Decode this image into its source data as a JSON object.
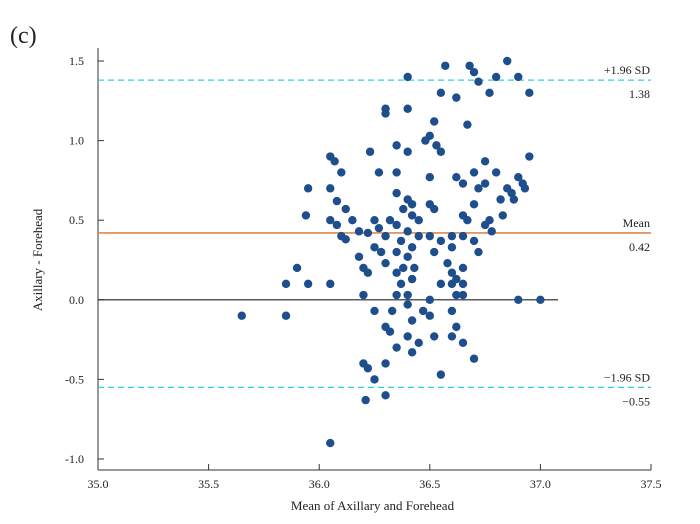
{
  "panel_label": "(c)",
  "chart_data": {
    "type": "scatter",
    "title": "",
    "xlabel": "Mean of Axillary and Forehead",
    "ylabel": "Axillary - Forehead",
    "xlim": [
      35.0,
      37.5
    ],
    "ylim": [
      -1.0,
      1.5
    ],
    "x_ticks": [
      35.0,
      35.5,
      36.0,
      36.5,
      37.0,
      37.5
    ],
    "x_tick_labels": [
      "35.0",
      "35.5",
      "36.0",
      "36.5",
      "37.0",
      "37.5"
    ],
    "y_ticks": [
      -1.0,
      -0.5,
      0.0,
      0.5,
      1.0,
      1.5
    ],
    "y_tick_labels": [
      "-1.0",
      "-0.5",
      "0.0",
      "0.5",
      "1.0",
      "1.5"
    ],
    "grid": false,
    "colors": {
      "points": "#1f4e8c",
      "mean_line": "#d98a4f",
      "limit_lines": "#2fd0e6",
      "zero_line": "#222222",
      "axes": "#333333"
    },
    "zero_line": {
      "y": 0.0,
      "x_range": [
        35.0,
        37.08
      ]
    },
    "reference_lines": [
      {
        "name": "upper_loa",
        "y": 1.38,
        "label": "+1.96 SD",
        "value_label": "1.38",
        "style": "dashed"
      },
      {
        "name": "mean",
        "y": 0.42,
        "label": "Mean",
        "value_label": "0.42",
        "style": "solid"
      },
      {
        "name": "lower_loa",
        "y": -0.55,
        "label": "−1.96 SD",
        "value_label": "−0.55",
        "style": "dashed"
      }
    ],
    "points": [
      {
        "x": 35.65,
        "y": -0.1
      },
      {
        "x": 35.85,
        "y": -0.1
      },
      {
        "x": 35.85,
        "y": 0.1
      },
      {
        "x": 35.9,
        "y": 0.2
      },
      {
        "x": 35.95,
        "y": 0.1
      },
      {
        "x": 35.94,
        "y": 0.53
      },
      {
        "x": 35.95,
        "y": 0.7
      },
      {
        "x": 36.05,
        "y": 0.9
      },
      {
        "x": 36.07,
        "y": 0.87
      },
      {
        "x": 36.1,
        "y": 0.8
      },
      {
        "x": 36.05,
        "y": 0.7
      },
      {
        "x": 36.08,
        "y": 0.62
      },
      {
        "x": 36.12,
        "y": 0.57
      },
      {
        "x": 36.05,
        "y": 0.5
      },
      {
        "x": 36.08,
        "y": 0.47
      },
      {
        "x": 36.1,
        "y": 0.4
      },
      {
        "x": 36.12,
        "y": 0.38
      },
      {
        "x": 36.05,
        "y": 0.1
      },
      {
        "x": 36.05,
        "y": -0.9
      },
      {
        "x": 36.18,
        "y": 0.43
      },
      {
        "x": 36.15,
        "y": 0.5
      },
      {
        "x": 36.22,
        "y": 0.42
      },
      {
        "x": 36.25,
        "y": 0.5
      },
      {
        "x": 36.27,
        "y": 0.45
      },
      {
        "x": 36.3,
        "y": 0.4
      },
      {
        "x": 36.25,
        "y": 0.33
      },
      {
        "x": 36.28,
        "y": 0.3
      },
      {
        "x": 36.3,
        "y": 0.23
      },
      {
        "x": 36.18,
        "y": 0.27
      },
      {
        "x": 36.2,
        "y": 0.2
      },
      {
        "x": 36.22,
        "y": 0.17
      },
      {
        "x": 36.2,
        "y": 0.03
      },
      {
        "x": 36.25,
        "y": -0.07
      },
      {
        "x": 36.2,
        "y": -0.4
      },
      {
        "x": 36.22,
        "y": -0.43
      },
      {
        "x": 36.21,
        "y": -0.63
      },
      {
        "x": 36.25,
        "y": -0.5
      },
      {
        "x": 36.3,
        "y": -0.6
      },
      {
        "x": 36.3,
        "y": -0.4
      },
      {
        "x": 36.3,
        "y": -0.17
      },
      {
        "x": 36.32,
        "y": -0.2
      },
      {
        "x": 36.35,
        "y": -0.3
      },
      {
        "x": 36.33,
        "y": -0.07
      },
      {
        "x": 36.35,
        "y": 0.03
      },
      {
        "x": 36.37,
        "y": 0.1
      },
      {
        "x": 36.35,
        "y": 0.17
      },
      {
        "x": 36.38,
        "y": 0.2
      },
      {
        "x": 36.35,
        "y": 0.3
      },
      {
        "x": 36.37,
        "y": 0.37
      },
      {
        "x": 36.4,
        "y": 0.43
      },
      {
        "x": 36.35,
        "y": 0.47
      },
      {
        "x": 36.32,
        "y": 0.5
      },
      {
        "x": 36.38,
        "y": 0.57
      },
      {
        "x": 36.4,
        "y": 0.63
      },
      {
        "x": 36.42,
        "y": 0.6
      },
      {
        "x": 36.35,
        "y": 0.67
      },
      {
        "x": 36.35,
        "y": 0.8
      },
      {
        "x": 36.4,
        "y": 0.93
      },
      {
        "x": 36.35,
        "y": 0.97
      },
      {
        "x": 36.3,
        "y": 1.17
      },
      {
        "x": 36.3,
        "y": 1.2
      },
      {
        "x": 36.4,
        "y": 1.2
      },
      {
        "x": 36.4,
        "y": 1.4
      },
      {
        "x": 36.23,
        "y": 0.93
      },
      {
        "x": 36.27,
        "y": 0.8
      },
      {
        "x": 36.42,
        "y": 0.53
      },
      {
        "x": 36.45,
        "y": 0.5
      },
      {
        "x": 36.45,
        "y": 0.4
      },
      {
        "x": 36.42,
        "y": 0.33
      },
      {
        "x": 36.4,
        "y": 0.27
      },
      {
        "x": 36.43,
        "y": 0.2
      },
      {
        "x": 36.42,
        "y": 0.13
      },
      {
        "x": 36.4,
        "y": 0.03
      },
      {
        "x": 36.4,
        "y": -0.03
      },
      {
        "x": 36.42,
        "y": -0.13
      },
      {
        "x": 36.4,
        "y": -0.23
      },
      {
        "x": 36.42,
        "y": -0.33
      },
      {
        "x": 36.45,
        "y": -0.27
      },
      {
        "x": 36.47,
        "y": -0.07
      },
      {
        "x": 36.5,
        "y": 0.0
      },
      {
        "x": 36.52,
        "y": -0.23
      },
      {
        "x": 36.55,
        "y": -0.47
      },
      {
        "x": 36.5,
        "y": -0.1
      },
      {
        "x": 36.55,
        "y": 0.1
      },
      {
        "x": 36.52,
        "y": 0.3
      },
      {
        "x": 36.55,
        "y": 0.37
      },
      {
        "x": 36.5,
        "y": 0.4
      },
      {
        "x": 36.5,
        "y": 0.6
      },
      {
        "x": 36.52,
        "y": 0.57
      },
      {
        "x": 36.5,
        "y": 0.77
      },
      {
        "x": 36.55,
        "y": 0.93
      },
      {
        "x": 36.53,
        "y": 0.97
      },
      {
        "x": 36.5,
        "y": 1.03
      },
      {
        "x": 36.48,
        "y": 1.0
      },
      {
        "x": 36.52,
        "y": 1.12
      },
      {
        "x": 36.55,
        "y": 1.3
      },
      {
        "x": 36.57,
        "y": 1.47
      },
      {
        "x": 36.6,
        "y": 0.4
      },
      {
        "x": 36.6,
        "y": 0.33
      },
      {
        "x": 36.58,
        "y": 0.23
      },
      {
        "x": 36.6,
        "y": 0.17
      },
      {
        "x": 36.62,
        "y": 0.13
      },
      {
        "x": 36.6,
        "y": 0.1
      },
      {
        "x": 36.62,
        "y": 0.03
      },
      {
        "x": 36.6,
        "y": -0.07
      },
      {
        "x": 36.62,
        "y": -0.17
      },
      {
        "x": 36.6,
        "y": -0.23
      },
      {
        "x": 36.65,
        "y": -0.27
      },
      {
        "x": 36.7,
        "y": -0.37
      },
      {
        "x": 36.62,
        "y": 0.77
      },
      {
        "x": 36.65,
        "y": 0.73
      },
      {
        "x": 36.65,
        "y": 0.53
      },
      {
        "x": 36.67,
        "y": 0.5
      },
      {
        "x": 36.65,
        "y": 0.4
      },
      {
        "x": 36.65,
        "y": 0.2
      },
      {
        "x": 36.65,
        "y": 0.1
      },
      {
        "x": 36.65,
        "y": 0.03
      },
      {
        "x": 36.62,
        "y": 1.27
      },
      {
        "x": 36.67,
        "y": 1.1
      },
      {
        "x": 36.68,
        "y": 1.47
      },
      {
        "x": 36.7,
        "y": 1.43
      },
      {
        "x": 36.72,
        "y": 1.37
      },
      {
        "x": 36.7,
        "y": 0.8
      },
      {
        "x": 36.72,
        "y": 0.7
      },
      {
        "x": 36.7,
        "y": 0.6
      },
      {
        "x": 36.7,
        "y": 0.37
      },
      {
        "x": 36.72,
        "y": 0.3
      },
      {
        "x": 36.75,
        "y": 0.73
      },
      {
        "x": 36.75,
        "y": 0.47
      },
      {
        "x": 36.78,
        "y": 0.43
      },
      {
        "x": 36.77,
        "y": 0.5
      },
      {
        "x": 36.75,
        "y": 0.87
      },
      {
        "x": 36.77,
        "y": 1.3
      },
      {
        "x": 36.8,
        "y": 1.4
      },
      {
        "x": 36.8,
        "y": 0.8
      },
      {
        "x": 36.82,
        "y": 0.63
      },
      {
        "x": 36.85,
        "y": 0.7
      },
      {
        "x": 36.85,
        "y": 1.5
      },
      {
        "x": 36.87,
        "y": 0.67
      },
      {
        "x": 36.88,
        "y": 0.63
      },
      {
        "x": 36.9,
        "y": 0.77
      },
      {
        "x": 36.9,
        "y": 1.4
      },
      {
        "x": 36.92,
        "y": 0.73
      },
      {
        "x": 36.93,
        "y": 0.7
      },
      {
        "x": 36.95,
        "y": 0.9
      },
      {
        "x": 36.95,
        "y": 1.3
      },
      {
        "x": 36.9,
        "y": 0.0
      },
      {
        "x": 37.0,
        "y": 0.0
      },
      {
        "x": 36.83,
        "y": 0.53
      }
    ]
  }
}
